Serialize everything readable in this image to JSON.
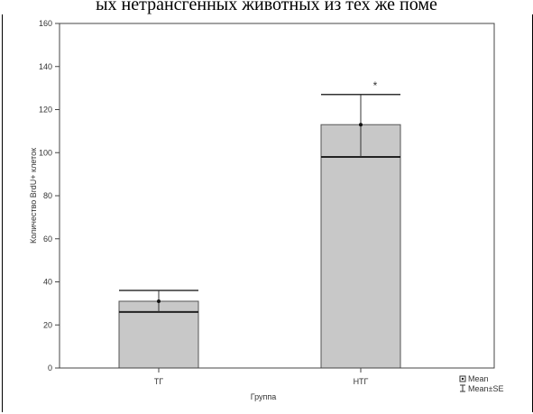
{
  "page": {
    "header_text": "ых нетрансгенных животных из тех же поме"
  },
  "chart_data": {
    "type": "bar",
    "title": "",
    "xlabel": "Группа",
    "ylabel": "Количество BrdU+ клеток",
    "categories": [
      "ТГ",
      "НТГ"
    ],
    "series": [
      {
        "name": "Mean",
        "values": [
          31,
          113
        ],
        "se_low": [
          26,
          98
        ],
        "se_high": [
          36,
          127
        ]
      }
    ],
    "significance": [
      "",
      "*"
    ],
    "ylim": [
      0,
      160
    ],
    "yticks": [
      0,
      20,
      40,
      60,
      80,
      100,
      120,
      140,
      160
    ],
    "grid": false,
    "legend": {
      "placement": "bottom-right",
      "entries": [
        {
          "label": "Mean",
          "icon": "mean-marker-icon"
        },
        {
          "label": "Mean±SE",
          "icon": "error-bar-icon"
        }
      ]
    },
    "colors": {
      "bar_fill": "#c8c8c8",
      "bar_stroke": "#555555",
      "axis": "#444444"
    }
  }
}
